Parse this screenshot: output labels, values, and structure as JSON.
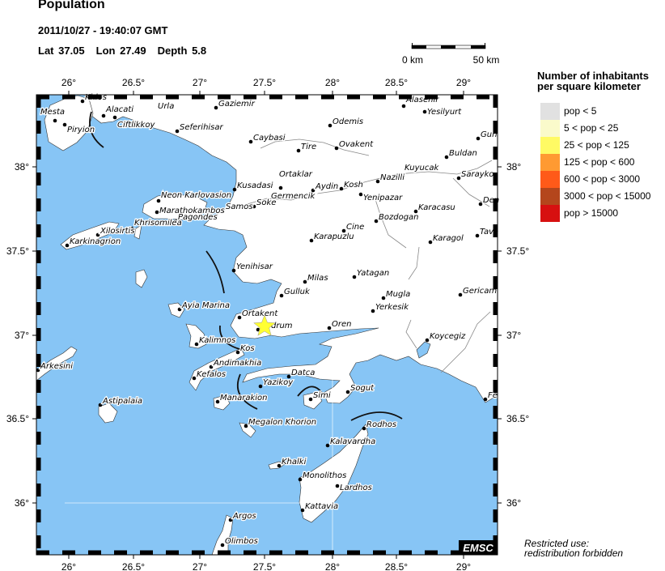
{
  "header": {
    "title": "Population",
    "datetime": "2011/10/27 - 19:40:07 GMT",
    "lat": "Lat 37.05",
    "lon": "Lon  27.49",
    "depth": "Depth  5.8"
  },
  "scale_bar": {
    "start_label": "0 km",
    "end_label": "50 km"
  },
  "axes": {
    "lon_ticks": [
      "26°",
      "26.5°",
      "27°",
      "27.5°",
      "28°",
      "28.5°",
      "29°"
    ],
    "lat_ticks": [
      "38°",
      "37.5°",
      "37°",
      "36.5°",
      "36°"
    ]
  },
  "legend": {
    "title_line1": "Number of inhabitants",
    "title_line2": "per square kilometer",
    "items": [
      {
        "label": "pop < 5",
        "color": "#e1e1e1"
      },
      {
        "label": "5 < pop < 25",
        "color": "#fafacb"
      },
      {
        "label": "25 < pop < 125",
        "color": "#fffa64"
      },
      {
        "label": "125 < pop < 600",
        "color": "#ff9a32"
      },
      {
        "label": "600 < pop < 3000",
        "color": "#ff5a19"
      },
      {
        "label": "3000 < pop < 15000",
        "color": "#b4461c"
      },
      {
        "label": "pop > 15000",
        "color": "#d71010"
      }
    ]
  },
  "map": {
    "sea_color": "#87c5f5",
    "land_color": "#ffffff",
    "epicenter_color": "#ffff33",
    "epicenter_icon": "star-icon",
    "cities": [
      "Khios",
      "Mesta",
      "Piryion",
      "Alacati",
      "Ciftlikkoy",
      "Urla",
      "Gaziemir",
      "Seferihisar",
      "Caybasi",
      "Kusadasi",
      "Soke",
      "Neon Karlovasion",
      "Samos",
      "Marathokambos",
      "Pagondes",
      "Khrisomilea",
      "Xilosirtis",
      "Karkinagrion",
      "Alasehir",
      "Yesilyurt",
      "Odemis",
      "Tire",
      "Ovakent",
      "Gun",
      "Buldan",
      "Nazilli",
      "Kuyucak",
      "Sarayko",
      "Ortaklar",
      "Germencik",
      "Aydin",
      "Kosh",
      "Yenipazar",
      "Den",
      "Karacasu",
      "Bozdogan",
      "Cine",
      "Karapuzlu",
      "Karagol",
      "Tava",
      "Yenihisar",
      "Ayia Marina",
      "Ortakent",
      "Bodrum",
      "Kalimnos",
      "Kos",
      "Andimakhia",
      "Kefalos",
      "Yazikoy",
      "Manarakion",
      "Arkesini",
      "Astipalaia",
      "Milas",
      "Yatagan",
      "Gulluk",
      "Mugla",
      "Yerkesik",
      "Gericam",
      "Oren",
      "Koycegiz",
      "Datca",
      "Sogut",
      "Simi",
      "Fe",
      "Megalon Khorion",
      "Rodhos",
      "Kalavardha",
      "Khalki",
      "Monolithos",
      "Lardhos",
      "Kattavia",
      "Argos",
      "Olimbos"
    ],
    "logo": "EMSC"
  },
  "footer": {
    "restricted_line1": "Restricted use:",
    "restricted_line2": "redistribution forbidden"
  }
}
